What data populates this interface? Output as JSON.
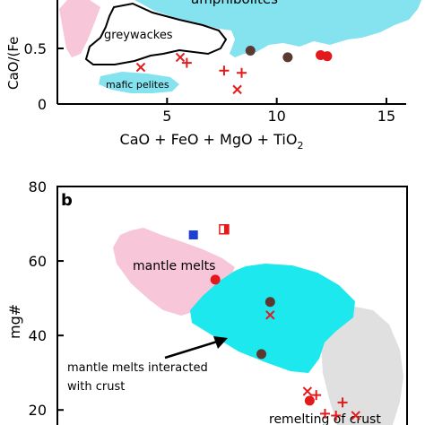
{
  "chart_data": [
    {
      "type": "scatter",
      "xlabel": "CaO + FeO + MgO + TiO",
      "xlabel_subscript": "2",
      "ylabel": "CaO/(Fe",
      "xlim": [
        0,
        16
      ],
      "ylim": [
        0,
        1.0
      ],
      "xticks": [
        "5",
        "10",
        "15"
      ],
      "xtick_values": [
        5,
        10,
        15
      ],
      "yticks": [
        "0",
        "0.5"
      ],
      "ytick_values": [
        0,
        0.5
      ],
      "fields": [
        {
          "name": "amphibolites",
          "color": "#85e3f0",
          "label": "amphibolites"
        },
        {
          "name": "greywackes",
          "color": "none",
          "outline": "#000000",
          "label": "greywackes"
        },
        {
          "name": "mafic pelites",
          "color": "#85e3f0",
          "label": "mafic pelites"
        },
        {
          "name": "felsic pelites",
          "color": "#f7c6d9",
          "label": ""
        }
      ],
      "series": [
        {
          "marker": "dot-brown",
          "color": "#5a3a30",
          "points": [
            [
              8.8,
              0.48
            ],
            [
              10.5,
              0.42
            ]
          ]
        },
        {
          "marker": "dot-red",
          "color": "#e31a1c",
          "points": [
            [
              12.0,
              0.44
            ],
            [
              12.3,
              0.43
            ]
          ]
        },
        {
          "marker": "x",
          "color": "#e31a1c",
          "points": [
            [
              5.6,
              0.42
            ],
            [
              3.8,
              0.33
            ],
            [
              8.2,
              0.13
            ]
          ]
        },
        {
          "marker": "plus",
          "color": "#e31a1c",
          "points": [
            [
              5.9,
              0.37
            ],
            [
              7.6,
              0.3
            ],
            [
              8.4,
              0.28
            ]
          ]
        }
      ]
    },
    {
      "type": "scatter",
      "panel_label": "b",
      "ylabel": "mg#",
      "ylim": [
        15,
        80
      ],
      "yticks": [
        "20",
        "40",
        "60",
        "80"
      ],
      "ytick_values": [
        20,
        40,
        60,
        80
      ],
      "fields": [
        {
          "name": "mantle melts",
          "color": "#f7c6d9",
          "label": "mantle melts"
        },
        {
          "name": "mantle melts interacted with crust",
          "color": "#1ce8ee",
          "label_lines": [
            "mantle melts interacted",
            "with crust"
          ]
        },
        {
          "name": "remelting of crust",
          "color": "#e0e0e0",
          "label": "remelting of crust"
        }
      ],
      "series": [
        {
          "marker": "square-blue",
          "color": "#1c3fd8",
          "points": [
            [
              6.2,
              67
            ]
          ]
        },
        {
          "marker": "square-half-red",
          "color": "#e31a1c",
          "points": [
            [
              7.6,
              68.5
            ]
          ]
        },
        {
          "marker": "dot-red",
          "color": "#e31a1c",
          "points": [
            [
              7.2,
              55
            ],
            [
              11.5,
              22.5
            ]
          ]
        },
        {
          "marker": "dot-brown",
          "color": "#5a3a30",
          "points": [
            [
              9.7,
              49
            ],
            [
              9.3,
              35
            ]
          ]
        },
        {
          "marker": "x",
          "color": "#e31a1c",
          "points": [
            [
              9.7,
              45.5
            ],
            [
              11.4,
              25
            ],
            [
              13.6,
              18.5
            ]
          ]
        },
        {
          "marker": "plus",
          "color": "#e31a1c",
          "points": [
            [
              11.8,
              24
            ],
            [
              12.2,
              19
            ],
            [
              13.0,
              22
            ],
            [
              12.7,
              18.5
            ]
          ]
        }
      ]
    }
  ]
}
